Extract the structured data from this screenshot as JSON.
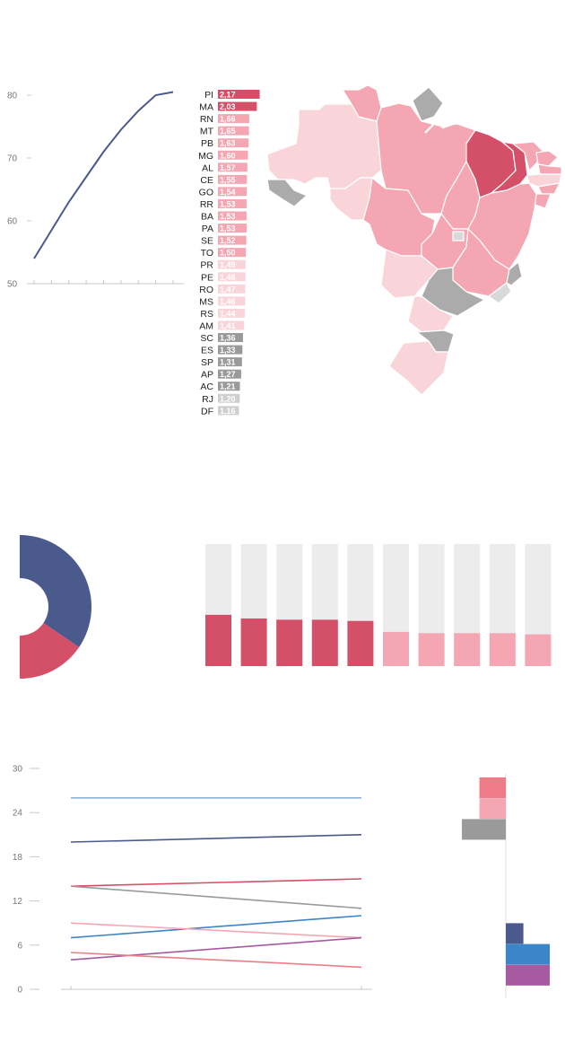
{
  "colors": {
    "navy": "#4a5a8c",
    "crimson": "#d45068",
    "pink": "#f4a7b3",
    "lightpink": "#f9d5da",
    "gray": "#9a9a9a",
    "lightgray": "#cfcfcf",
    "track": "#ececec",
    "red": "#ef7a88",
    "blue": "#3a86c8",
    "purple": "#a85aa0",
    "skyblue": "#8fb1dc"
  },
  "chart_data": [
    {
      "type": "line",
      "yticks": [
        "80",
        "70",
        "60",
        "50"
      ],
      "ylim": [
        50,
        80
      ],
      "x": [
        0,
        1,
        2,
        3,
        4,
        5,
        6,
        7,
        8
      ],
      "series": [
        {
          "values": [
            54,
            58.5,
            63,
            67,
            71,
            74.5,
            77.5,
            80,
            80.5
          ]
        }
      ],
      "color": "navy"
    },
    {
      "type": "bar",
      "categories": [
        "PI",
        "MA",
        "RN",
        "MT",
        "PB",
        "MG",
        "AL",
        "CE",
        "GO",
        "RR",
        "BA",
        "PA",
        "SE",
        "TO",
        "PR",
        "PE",
        "RO",
        "MS",
        "RS",
        "AM",
        "SC",
        "ES",
        "SP",
        "AP",
        "AC",
        "RJ",
        "DF"
      ],
      "labels": [
        "2,17",
        "2,03",
        "1,66",
        "1,65",
        "1,63",
        "1,60",
        "1,57",
        "1,55",
        "1,54",
        "1,53",
        "1,53",
        "1,53",
        "1,52",
        "1,50",
        "1,49",
        "1,48",
        "1,47",
        "1,46",
        "1,44",
        "1,41",
        "1,36",
        "1,33",
        "1,31",
        "1,27",
        "1,21",
        "1,20",
        "1,16"
      ],
      "values": [
        2.17,
        2.03,
        1.66,
        1.65,
        1.63,
        1.6,
        1.57,
        1.55,
        1.54,
        1.53,
        1.53,
        1.53,
        1.52,
        1.5,
        1.49,
        1.48,
        1.47,
        1.46,
        1.44,
        1.41,
        1.36,
        1.33,
        1.31,
        1.27,
        1.21,
        1.2,
        1.16
      ],
      "colors": [
        "crimson",
        "crimson",
        "pink",
        "pink",
        "pink",
        "pink",
        "pink",
        "pink",
        "pink",
        "pink",
        "pink",
        "pink",
        "pink",
        "pink",
        "lightpink",
        "lightpink",
        "lightpink",
        "lightpink",
        "lightpink",
        "lightpink",
        "gray",
        "gray",
        "gray",
        "gray",
        "gray",
        "lightgray",
        "lightgray"
      ]
    },
    {
      "type": "pie",
      "values": [
        69,
        31
      ],
      "colors": [
        "navy",
        "crimson"
      ]
    },
    {
      "type": "bar",
      "values": [
        42,
        39,
        38,
        38,
        37,
        28,
        27,
        27,
        27,
        26
      ],
      "ylim": [
        0,
        100
      ],
      "colors": [
        "crimson",
        "crimson",
        "crimson",
        "crimson",
        "crimson",
        "pink",
        "pink",
        "pink",
        "pink",
        "pink"
      ]
    },
    {
      "type": "line",
      "yticks": [
        "30",
        "24",
        "18",
        "12",
        "6",
        "0"
      ],
      "ylim": [
        0,
        30
      ],
      "x": [
        0,
        1
      ],
      "series": [
        {
          "values": [
            26,
            26
          ],
          "color": "skyblue"
        },
        {
          "values": [
            20,
            21
          ],
          "color": "navy"
        },
        {
          "values": [
            14,
            15
          ],
          "color": "crimson"
        },
        {
          "values": [
            14,
            11
          ],
          "color": "gray"
        },
        {
          "values": [
            7,
            10
          ],
          "color": "blue"
        },
        {
          "values": [
            9,
            7
          ],
          "color": "pink"
        },
        {
          "values": [
            4,
            7
          ],
          "color": "purple"
        },
        {
          "values": [
            5,
            3
          ],
          "color": "red"
        }
      ]
    },
    {
      "type": "bar",
      "orientation": "horizontal",
      "values": [
        -3,
        -3,
        -5,
        0,
        0,
        0,
        0,
        2,
        5,
        5
      ],
      "colors": [
        "red",
        "pink",
        "gray",
        "",
        "",
        "",
        "",
        "navy",
        "blue",
        "purple"
      ]
    }
  ]
}
